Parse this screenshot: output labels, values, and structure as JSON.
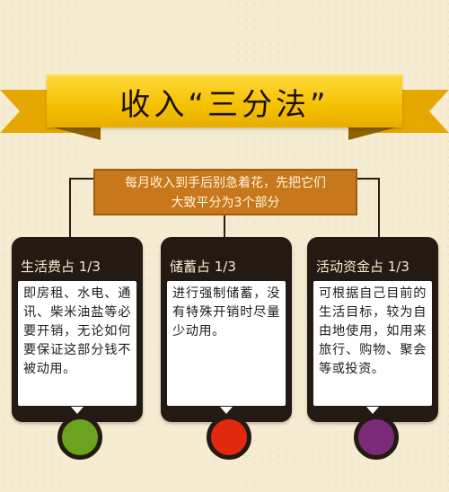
{
  "title": "收入“三分法”",
  "subtitle": {
    "line1": "每月收入到手后别急着花，先把它们",
    "line2": "大致平分为3个部分"
  },
  "cards": [
    {
      "title": "生活费占 1/3",
      "body": "即房租、水电、通讯、柴米油盐等必要开销，无论如何要保证这部分钱不被动用。",
      "dot_color": "#6ba31f"
    },
    {
      "title": "储蓄占 1/3",
      "body": "进行强制储蓄，没有特殊开销时尽量少动用。",
      "dot_color": "#e0290f"
    },
    {
      "title": "活动资金占 1/3",
      "body": "可根据自己目前的生活目标，较为自由地使用，如用来旅行、购物、聚会等或投资。",
      "dot_color": "#7b2a78"
    }
  ],
  "colors": {
    "ribbon": "#f4c000",
    "subtitle_bg": "#c8781c",
    "card_bg": "#231a13",
    "background": "#f6ecd2"
  }
}
